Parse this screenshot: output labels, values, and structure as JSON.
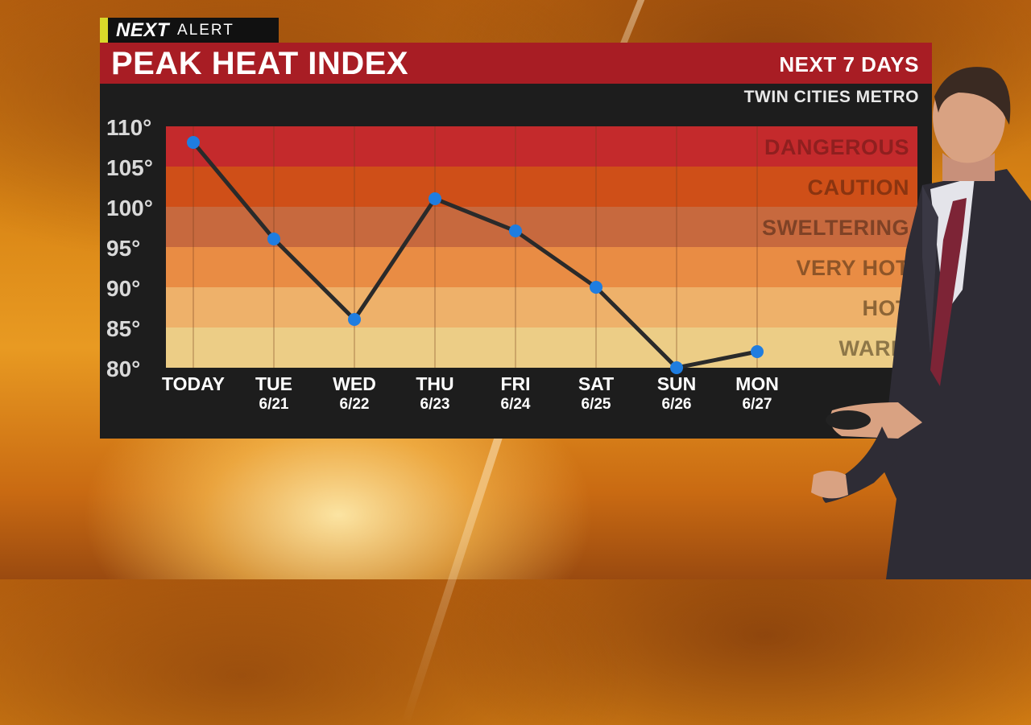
{
  "brand": {
    "next": "NEXT",
    "alert": "ALERT"
  },
  "header": {
    "title": "PEAK HEAT INDEX",
    "days_label": "NEXT 7 DAYS",
    "region": "TWIN CITIES METRO"
  },
  "colors": {
    "header_red": "#a81d24",
    "panel_bg": "#1d1d1d",
    "line": "#2a2a2a",
    "point": "#1f7de0",
    "y_tick_text": "#d9d9d9",
    "x_tick_text": "#ffffff"
  },
  "chart_data": {
    "type": "line",
    "title": "PEAK HEAT INDEX",
    "categories": [
      "TODAY",
      "TUE",
      "WED",
      "THU",
      "FRI",
      "SAT",
      "SUN",
      "MON"
    ],
    "dates": [
      "",
      "6/21",
      "6/22",
      "6/23",
      "6/24",
      "6/25",
      "6/26",
      "6/27"
    ],
    "values": [
      108,
      96,
      86,
      101,
      97,
      90,
      80,
      82
    ],
    "ylim": [
      80,
      110
    ],
    "y_ticks": [
      110,
      105,
      100,
      95,
      90,
      85,
      80
    ],
    "y_tick_labels": [
      "110°",
      "105°",
      "100°",
      "95°",
      "90°",
      "85°",
      "80°"
    ],
    "bands": [
      {
        "label": "DANGEROUS",
        "from": 105,
        "to": 110,
        "color": "#c42a2c",
        "text_color": "#8f1f1f"
      },
      {
        "label": "CAUTION",
        "from": 100,
        "to": 105,
        "color": "#cf4f18",
        "text_color": "#8a3410"
      },
      {
        "label": "SWELTERING",
        "from": 95,
        "to": 100,
        "color": "#c7693e",
        "text_color": "#7f4226"
      },
      {
        "label": "VERY HOT",
        "from": 90,
        "to": 95,
        "color": "#e98c44",
        "text_color": "#8e5528"
      },
      {
        "label": "HOT",
        "from": 85,
        "to": 90,
        "color": "#eeb16a",
        "text_color": "#8d6536"
      },
      {
        "label": "WARM",
        "from": 80,
        "to": 85,
        "color": "#eccd86",
        "text_color": "#8e7748"
      }
    ],
    "grid": true
  }
}
